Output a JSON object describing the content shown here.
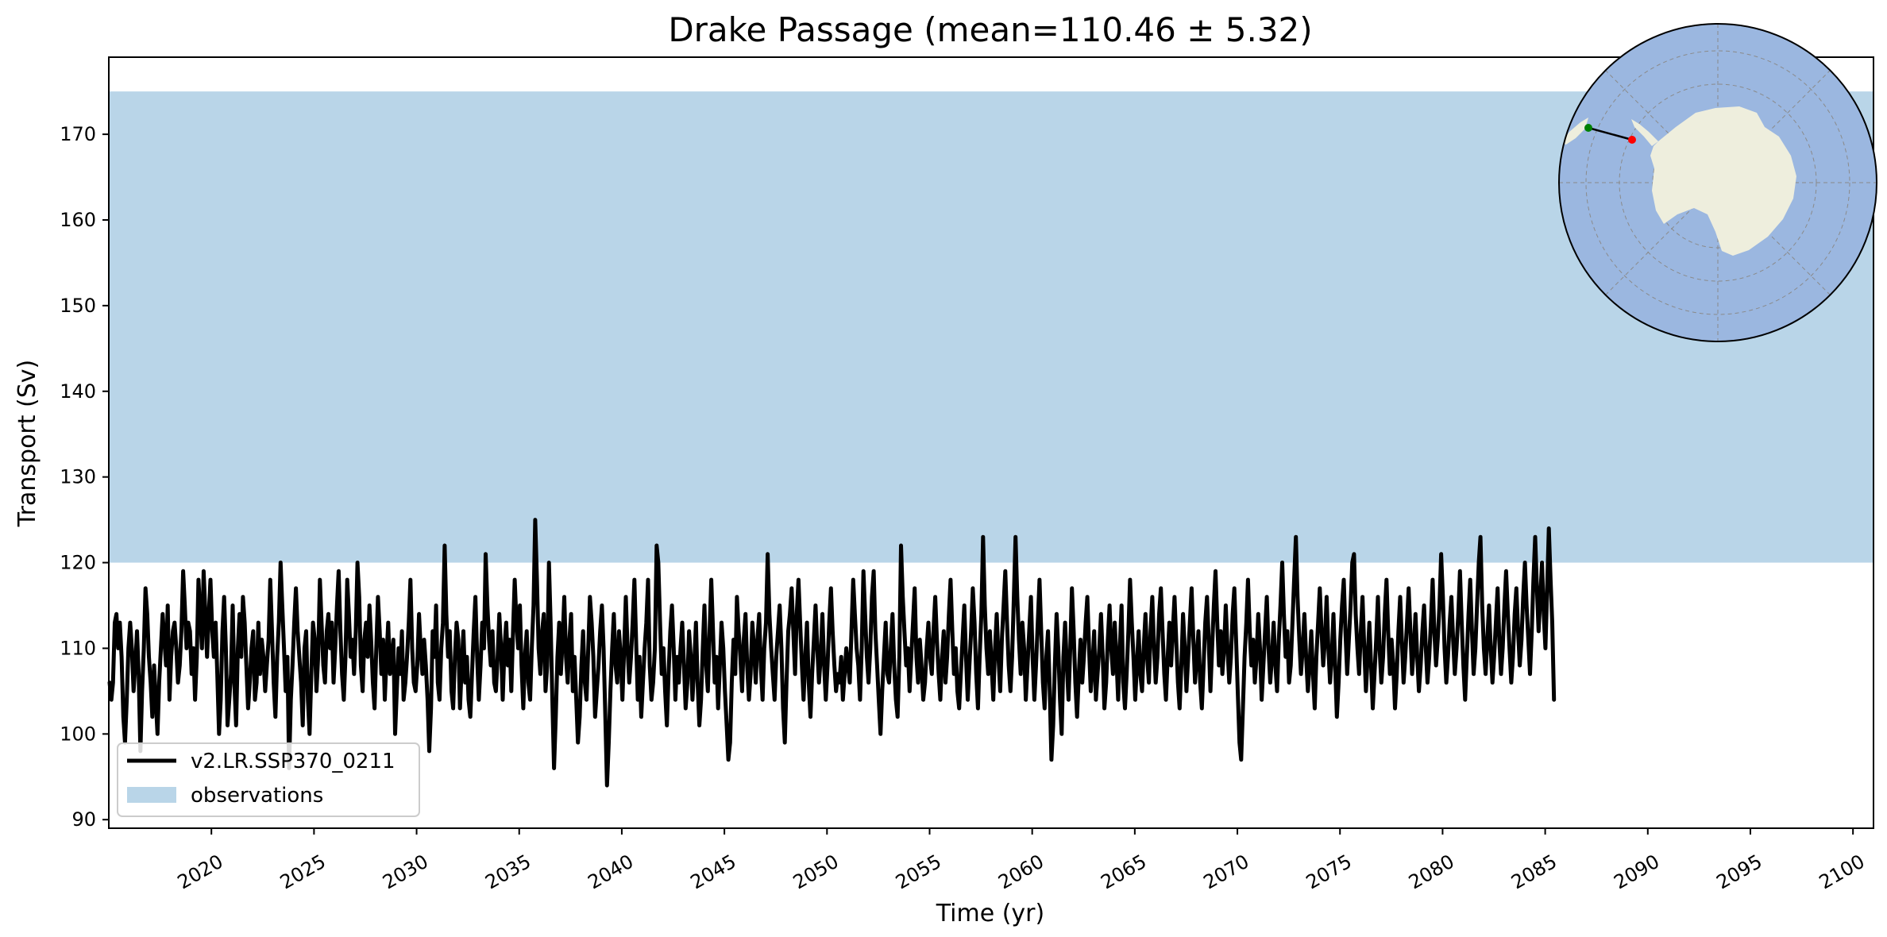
{
  "chart_data": {
    "type": "line",
    "title": "Drake Passage (mean=110.46 ± 5.32)",
    "xlabel": "Time (yr)",
    "ylabel": "Transport (Sv)",
    "xlim": [
      2015,
      2101
    ],
    "ylim": [
      89,
      179
    ],
    "x_ticks": [
      "2020",
      "2025",
      "2030",
      "2035",
      "2040",
      "2045",
      "2050",
      "2055",
      "2060",
      "2065",
      "2070",
      "2075",
      "2080",
      "2085",
      "2090",
      "2095",
      "2100"
    ],
    "y_ticks": [
      "90",
      "100",
      "110",
      "120",
      "130",
      "140",
      "150",
      "160",
      "170"
    ],
    "grid": false,
    "legend_position": "lower-left",
    "observations_band": {
      "name": "observations",
      "ymin": 120,
      "ymax": 175,
      "color": "#b9d5e8"
    },
    "series": [
      {
        "name": "v2.LR.SSP370_0211",
        "color": "#000000",
        "x_start": 2015.04,
        "x_step": 0.0833,
        "values": [
          106.0,
          104.0,
          106.0,
          113.0,
          114.0,
          110.0,
          113.0,
          109.0,
          102.0,
          99.0,
          104.0,
          110.0,
          113.0,
          110.0,
          105.0,
          108.0,
          112.0,
          107.0,
          98.0,
          105.0,
          110.0,
          117.0,
          114.0,
          109.0,
          106.0,
          102.0,
          108.0,
          104.0,
          100.0,
          106.0,
          110.0,
          114.0,
          111.0,
          108.0,
          115.0,
          104.0,
          109.0,
          112.0,
          113.0,
          110.0,
          106.0,
          108.0,
          112.0,
          119.0,
          115.0,
          110.0,
          113.0,
          112.0,
          107.0,
          110.0,
          104.0,
          109.0,
          118.0,
          114.0,
          110.0,
          119.0,
          114.0,
          109.0,
          114.0,
          118.0,
          112.0,
          109.0,
          113.0,
          107.0,
          100.0,
          104.0,
          112.0,
          116.0,
          110.0,
          101.0,
          104.0,
          107.0,
          115.0,
          106.0,
          101.0,
          110.0,
          114.0,
          109.0,
          116.0,
          113.0,
          108.0,
          103.0,
          106.0,
          110.0,
          112.0,
          104.0,
          106.0,
          113.0,
          107.0,
          111.0,
          109.0,
          105.0,
          108.0,
          111.0,
          118.0,
          112.0,
          106.0,
          102.0,
          109.0,
          113.0,
          120.0,
          115.0,
          110.0,
          105.0,
          109.0,
          96.0,
          104.0,
          108.0,
          113.0,
          117.0,
          112.0,
          109.0,
          106.0,
          101.0,
          110.0,
          112.0,
          104.0,
          100.0,
          107.0,
          113.0,
          111.0,
          105.0,
          109.0,
          118.0,
          113.0,
          108.0,
          106.0,
          112.0,
          114.0,
          110.0,
          113.0,
          106.0,
          110.0,
          115.0,
          119.0,
          112.0,
          107.0,
          104.0,
          109.0,
          118.0,
          114.0,
          109.0,
          111.0,
          107.0,
          112.0,
          120.0,
          116.0,
          108.0,
          105.0,
          111.0,
          113.0,
          109.0,
          115.0,
          111.0,
          106.0,
          103.0,
          110.0,
          116.0,
          112.0,
          107.0,
          111.0,
          104.0,
          109.0,
          113.0,
          107.0,
          109.0,
          111.0,
          100.0,
          105.0,
          110.0,
          107.0,
          112.0,
          104.0,
          106.0,
          109.0,
          113.0,
          118.0,
          110.0,
          106.0,
          105.0,
          108.0,
          114.0,
          110.0,
          107.0,
          111.0,
          108.0,
          104.0,
          98.0,
          103.0,
          112.0,
          109.0,
          115.0,
          106.0,
          104.0,
          110.0,
          113.0,
          122.0,
          114.0,
          109.0,
          112.0,
          105.0,
          103.0,
          109.0,
          113.0,
          111.0,
          103.0,
          108.0,
          112.0,
          106.0,
          109.0,
          104.0,
          102.0,
          107.0,
          112.0,
          116.0,
          109.0,
          104.0,
          108.0,
          113.0,
          110.0,
          121.0,
          115.0,
          111.0,
          108.0,
          112.0,
          106.0,
          105.0,
          109.0,
          114.0,
          110.0,
          104.0,
          110.0,
          113.0,
          108.0,
          111.0,
          105.0,
          112.0,
          118.0,
          113.0,
          110.0,
          115.0,
          108.0,
          103.0,
          109.0,
          112.0,
          106.0,
          104.0,
          110.0,
          115.0,
          125.0,
          118.0,
          110.0,
          107.0,
          112.0,
          114.0,
          105.0,
          108.0,
          120.0,
          113.0,
          104.0,
          96.0,
          102.0,
          109.0,
          113.0,
          107.0,
          111.0,
          116.0,
          109.0,
          106.0,
          111.0,
          114.0,
          105.0,
          109.0,
          104.0,
          99.0,
          102.0,
          108.0,
          112.0,
          106.0,
          104.0,
          110.0,
          116.0,
          113.0,
          109.0,
          102.0,
          105.0,
          108.0,
          112.0,
          115.0,
          110.0,
          102.0,
          94.0,
          99.0,
          105.0,
          110.0,
          114.0,
          108.0,
          106.0,
          112.0,
          109.0,
          104.0,
          110.0,
          116.0,
          110.0,
          106.0,
          109.0,
          113.0,
          118.0,
          111.0,
          104.0,
          109.0,
          102.0,
          106.0,
          110.0,
          113.0,
          118.0,
          108.0,
          104.0,
          106.0,
          110.0,
          122.0,
          120.0,
          113.0,
          107.0,
          110.0,
          105.0,
          101.0,
          107.0,
          112.0,
          115.0,
          110.0,
          104.0,
          109.0,
          106.0,
          110.0,
          113.0,
          108.0,
          103.0,
          106.0,
          112.0,
          109.0,
          104.0,
          108.0,
          113.0,
          106.0,
          101.0,
          104.0,
          110.0,
          115.0,
          108.0,
          105.0,
          112.0,
          118.0,
          112.0,
          106.0,
          109.0,
          103.0,
          108.0,
          113.0,
          110.0,
          105.0,
          101.0,
          97.0,
          99.0,
          106.0,
          111.0,
          107.0,
          116.0,
          112.0,
          109.0,
          105.0,
          111.0,
          114.0,
          108.0,
          104.0,
          107.0,
          113.0,
          110.0,
          106.0,
          111.0,
          114.0,
          108.0,
          104.0,
          110.0,
          113.0,
          121.0,
          114.0,
          110.0,
          107.0,
          104.0,
          109.0,
          112.0,
          115.0,
          110.0,
          103.0,
          99.0,
          106.0,
          112.0,
          114.0,
          117.0,
          112.0,
          107.0,
          114.0,
          118.0,
          113.0,
          108.0,
          104.0,
          109.0,
          113.0,
          106.0,
          102.0,
          107.0,
          111.0,
          115.0,
          110.0,
          106.0,
          109.0,
          114.0,
          108.0,
          104.0,
          108.0,
          113.0,
          117.0,
          112.0,
          108.0,
          105.0,
          107.0,
          106.0,
          109.0,
          104.0,
          107.0,
          110.0,
          108.0,
          106.0,
          112.0,
          118.0,
          114.0,
          110.0,
          108.0,
          104.0,
          110.0,
          119.0,
          114.0,
          109.0,
          106.0,
          110.0,
          116.0,
          119.0,
          112.0,
          108.0,
          104.0,
          100.0,
          105.0,
          109.0,
          113.0,
          107.0,
          106.0,
          110.0,
          114.0,
          108.0,
          104.0,
          102.0,
          109.0,
          122.0,
          116.0,
          112.0,
          108.0,
          110.0,
          105.0,
          109.0,
          113.0,
          117.0,
          109.0,
          106.0,
          111.0,
          108.0,
          104.0,
          106.0,
          110.0,
          113.0,
          109.0,
          107.0,
          112.0,
          116.0,
          111.0,
          107.0,
          104.0,
          109.0,
          112.0,
          106.0,
          109.0,
          114.0,
          118.0,
          112.0,
          107.0,
          110.0,
          105.0,
          103.0,
          107.0,
          111.0,
          115.0,
          109.0,
          104.0,
          108.0,
          112.0,
          117.0,
          113.0,
          107.0,
          103.0,
          109.0,
          114.0,
          123.0,
          115.0,
          110.0,
          107.0,
          112.0,
          108.0,
          104.0,
          110.0,
          114.0,
          109.0,
          105.0,
          111.0,
          115.0,
          119.0,
          113.0,
          108.0,
          105.0,
          109.0,
          116.0,
          123.0,
          116.0,
          111.0,
          107.0,
          113.0,
          110.0,
          104.0,
          108.0,
          112.0,
          116.0,
          109.0,
          104.0,
          108.0,
          113.0,
          118.0,
          112.0,
          106.0,
          103.0,
          109.0,
          112.0,
          105.0,
          97.0,
          101.0,
          108.0,
          114.0,
          110.0,
          104.0,
          100.0,
          109.0,
          113.0,
          108.0,
          104.0,
          110.0,
          117.0,
          112.0,
          106.0,
          102.0,
          107.0,
          111.0,
          106.0,
          109.0,
          113.0,
          116.0,
          110.0,
          105.0,
          108.0,
          112.0,
          104.0,
          107.0,
          110.0,
          114.0,
          109.0,
          103.0,
          106.0,
          111.0,
          115.0,
          110.0,
          107.0,
          113.0,
          109.0,
          104.0,
          110.0,
          115.0,
          106.0,
          103.0,
          107.0,
          112.0,
          118.0,
          113.0,
          109.0,
          104.0,
          108.0,
          112.0,
          107.0,
          105.0,
          110.0,
          114.0,
          109.0,
          106.0,
          112.0,
          116.0,
          110.0,
          106.0,
          109.0,
          114.0,
          117.0,
          112.0,
          107.0,
          104.0,
          109.0,
          113.0,
          108.0,
          112.0,
          116.0,
          111.0,
          106.0,
          103.0,
          108.0,
          114.0,
          110.0,
          105.0,
          109.0,
          113.0,
          117.0,
          111.0,
          106.0,
          109.0,
          112.0,
          106.0,
          103.0,
          108.0,
          113.0,
          116.0,
          111.0,
          105.0,
          110.0,
          115.0,
          119.0,
          113.0,
          108.0,
          112.0,
          107.0,
          110.0,
          115.0,
          110.0,
          106.0,
          109.0,
          114.0,
          117.0,
          111.0,
          105.0,
          99.0,
          97.0,
          103.0,
          109.0,
          113.0,
          118.0,
          112.0,
          108.0,
          111.0,
          106.0,
          109.0,
          114.0,
          110.0,
          104.0,
          108.0,
          112.0,
          116.0,
          110.0,
          106.0,
          109.0,
          113.0,
          108.0,
          105.0,
          111.0,
          115.0,
          120.0,
          114.0,
          109.0,
          112.0,
          106.0,
          108.0,
          113.0,
          118.0,
          123.0,
          116.0,
          111.0,
          107.0,
          110.0,
          114.0,
          109.0,
          105.0,
          108.0,
          112.0,
          107.0,
          103.0,
          109.0,
          113.0,
          117.0,
          112.0,
          108.0,
          111.0,
          116.0,
          110.0,
          106.0,
          109.0,
          114.0,
          108.0,
          102.0,
          106.0,
          111.0,
          115.0,
          118.0,
          112.0,
          107.0,
          111.0,
          115.0,
          120.0,
          121.0,
          114.0,
          110.0,
          107.0,
          112.0,
          116.0,
          110.0,
          105.0,
          109.0,
          113.0,
          108.0,
          103.0,
          107.0,
          111.0,
          116.0,
          110.0,
          106.0,
          109.0,
          114.0,
          118.0,
          112.0,
          107.0,
          111.0,
          108.0,
          103.0,
          107.0,
          112.0,
          116.0,
          111.0,
          106.0,
          109.0,
          113.0,
          117.0,
          112.0,
          107.0,
          110.0,
          114.0,
          109.0,
          105.0,
          108.0,
          112.0,
          115.0,
          110.0,
          106.0,
          109.0,
          113.0,
          118.0,
          112.0,
          108.0,
          111.0,
          115.0,
          121.0,
          116.0,
          110.0,
          106.0,
          109.0,
          113.0,
          116.0,
          111.0,
          107.0,
          110.0,
          114.0,
          119.0,
          113.0,
          108.0,
          104.0,
          109.0,
          114.0,
          118.0,
          112.0,
          107.0,
          110.0,
          115.0,
          120.0,
          123.0,
          115.0,
          110.0,
          107.0,
          111.0,
          115.0,
          110.0,
          106.0,
          109.0,
          113.0,
          117.0,
          111.0,
          107.0,
          110.0,
          115.0,
          119.0,
          114.0,
          110.0,
          106.0,
          109.0,
          114.0,
          117.0,
          112.0,
          108.0,
          111.0,
          116.0,
          120.0,
          115.0,
          111.0,
          107.0,
          112.0,
          118.0,
          123.0,
          117.0,
          112.0,
          116.0,
          120.0,
          114.0,
          110.0,
          117.0,
          124.0,
          118.0,
          113.0,
          104.0
        ]
      }
    ]
  },
  "inset_map": {
    "region": "Antarctica (south polar stereographic)",
    "ocean_color": "#9bb7e0",
    "land_color": "#eeeedd",
    "section_start_color": "#008000",
    "section_end_color": "#ff0000"
  }
}
